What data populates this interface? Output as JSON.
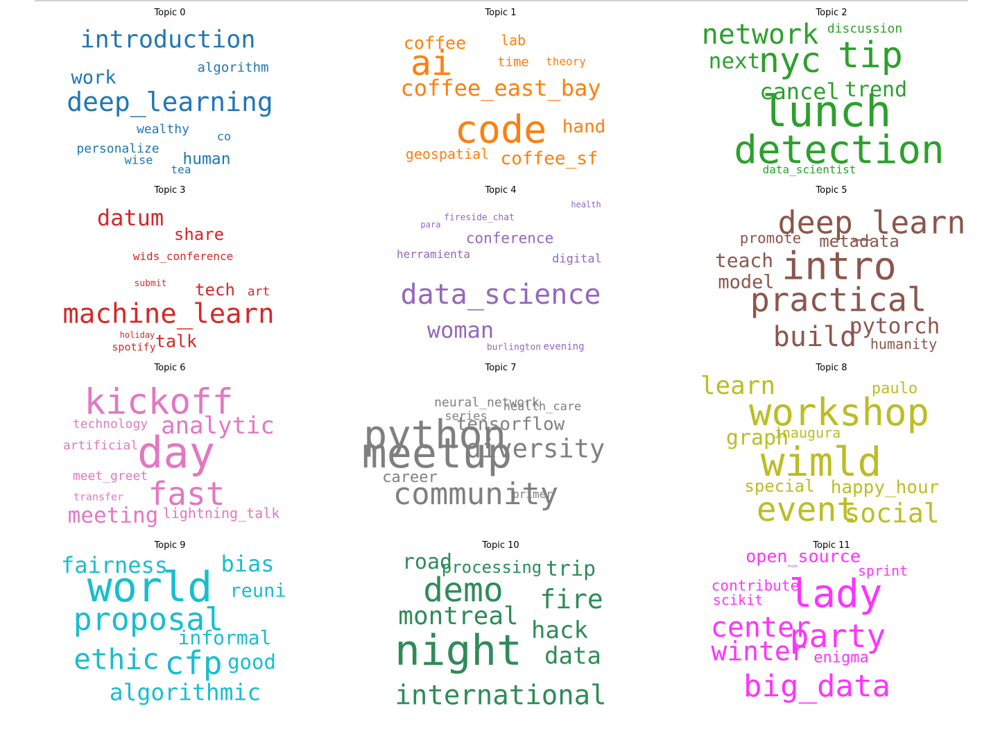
{
  "chart_data": [
    {
      "type": "wordcloud",
      "title": "Topic 0",
      "color": "#1f77b4",
      "words": [
        {
          "text": "introduction",
          "weight": 35
        },
        {
          "text": "deep_learning",
          "weight": 38
        },
        {
          "text": "work",
          "weight": 27
        },
        {
          "text": "algorithm",
          "weight": 19
        },
        {
          "text": "wealthy",
          "weight": 18
        },
        {
          "text": "co",
          "weight": 17
        },
        {
          "text": "personalize",
          "weight": 18
        },
        {
          "text": "wise",
          "weight": 17
        },
        {
          "text": "human",
          "weight": 23
        },
        {
          "text": "tea",
          "weight": 16
        }
      ]
    },
    {
      "type": "wordcloud",
      "title": "Topic 1",
      "color": "#ff7f0e",
      "words": [
        {
          "text": "coffee",
          "weight": 25
        },
        {
          "text": "lab",
          "weight": 20
        },
        {
          "text": "ai",
          "weight": 50
        },
        {
          "text": "time",
          "weight": 19
        },
        {
          "text": "theory",
          "weight": 16
        },
        {
          "text": "coffee_east_bay",
          "weight": 32
        },
        {
          "text": "code",
          "weight": 55
        },
        {
          "text": "hand",
          "weight": 26
        },
        {
          "text": "geospatial",
          "weight": 20
        },
        {
          "text": "coffee_sf",
          "weight": 26
        }
      ]
    },
    {
      "type": "wordcloud",
      "title": "Topic 2",
      "color": "#2ca02c",
      "words": [
        {
          "text": "network",
          "weight": 40
        },
        {
          "text": "discussion",
          "weight": 18
        },
        {
          "text": "next",
          "weight": 31
        },
        {
          "text": "nyc",
          "weight": 50
        },
        {
          "text": "tip",
          "weight": 52
        },
        {
          "text": "cancel",
          "weight": 32
        },
        {
          "text": "trend",
          "weight": 30
        },
        {
          "text": "lunch",
          "weight": 62
        },
        {
          "text": "detection",
          "weight": 56
        },
        {
          "text": "data_scientist",
          "weight": 16
        }
      ]
    },
    {
      "type": "wordcloud",
      "title": "Topic 3",
      "color": "#d62728",
      "words": [
        {
          "text": "datum",
          "weight": 32
        },
        {
          "text": "share",
          "weight": 24
        },
        {
          "text": "wids_conference",
          "weight": 16
        },
        {
          "text": "submit",
          "weight": 13
        },
        {
          "text": "tech",
          "weight": 24
        },
        {
          "text": "art",
          "weight": 18
        },
        {
          "text": "machine_learn",
          "weight": 39
        },
        {
          "text": "holiday",
          "weight": 12
        },
        {
          "text": "talk",
          "weight": 25
        },
        {
          "text": "spotify",
          "weight": 15
        }
      ]
    },
    {
      "type": "wordcloud",
      "title": "Topic 4",
      "color": "#9467bd",
      "words": [
        {
          "text": "health",
          "weight": 12
        },
        {
          "text": "fireside_chat",
          "weight": 13
        },
        {
          "text": "para",
          "weight": 12
        },
        {
          "text": "conference",
          "weight": 21
        },
        {
          "text": "herramienta",
          "weight": 16
        },
        {
          "text": "digital",
          "weight": 17
        },
        {
          "text": "data_science",
          "weight": 40
        },
        {
          "text": "woman",
          "weight": 32
        },
        {
          "text": "burlington",
          "weight": 13
        },
        {
          "text": "evening",
          "weight": 14
        }
      ]
    },
    {
      "type": "wordcloud",
      "title": "Topic 5",
      "color": "#8c564b",
      "words": [
        {
          "text": "deep_learn",
          "weight": 45
        },
        {
          "text": "promote",
          "weight": 21
        },
        {
          "text": "metadata",
          "weight": 24
        },
        {
          "text": "teach",
          "weight": 28
        },
        {
          "text": "intro",
          "weight": 55
        },
        {
          "text": "model",
          "weight": 27
        },
        {
          "text": "practical",
          "weight": 47
        },
        {
          "text": "pytorch",
          "weight": 31
        },
        {
          "text": "build",
          "weight": 40
        },
        {
          "text": "humanity",
          "weight": 20
        }
      ]
    },
    {
      "type": "wordcloud",
      "title": "Topic 6",
      "color": "#e377c2",
      "words": [
        {
          "text": "kickoff",
          "weight": 51
        },
        {
          "text": "technology",
          "weight": 18
        },
        {
          "text": "analytic",
          "weight": 34
        },
        {
          "text": "artificial",
          "weight": 18
        },
        {
          "text": "day",
          "weight": 62
        },
        {
          "text": "meet_greet",
          "weight": 18
        },
        {
          "text": "transfer",
          "weight": 15
        },
        {
          "text": "fast",
          "weight": 46
        },
        {
          "text": "meeting",
          "weight": 31
        },
        {
          "text": "lightning_talk",
          "weight": 20
        }
      ]
    },
    {
      "type": "wordcloud",
      "title": "Topic 7",
      "color": "#7f7f7f",
      "words": [
        {
          "text": "neural_network",
          "weight": 18
        },
        {
          "text": "health_care",
          "weight": 17
        },
        {
          "text": "series",
          "weight": 17
        },
        {
          "text": "python",
          "weight": 57
        },
        {
          "text": "tensorflow",
          "weight": 26
        },
        {
          "text": "meetup",
          "weight": 60
        },
        {
          "text": "diversity",
          "weight": 37
        },
        {
          "text": "career",
          "weight": 22
        },
        {
          "text": "primer",
          "weight": 16
        },
        {
          "text": "community",
          "weight": 44
        }
      ]
    },
    {
      "type": "wordcloud",
      "title": "Topic 8",
      "color": "#bcbd22",
      "words": [
        {
          "text": "learn",
          "weight": 36
        },
        {
          "text": "paulo",
          "weight": 22
        },
        {
          "text": "workshop",
          "weight": 54
        },
        {
          "text": "graph",
          "weight": 30
        },
        {
          "text": "inaugura",
          "weight": 20
        },
        {
          "text": "wimld",
          "weight": 58
        },
        {
          "text": "special",
          "weight": 24
        },
        {
          "text": "happy_hour",
          "weight": 26
        },
        {
          "text": "event",
          "weight": 48
        },
        {
          "text": "social",
          "weight": 38
        }
      ]
    },
    {
      "type": "wordcloud",
      "title": "Topic 9",
      "color": "#17becf",
      "words": [
        {
          "text": "fairness",
          "weight": 32
        },
        {
          "text": "bias",
          "weight": 32
        },
        {
          "text": "world",
          "weight": 60
        },
        {
          "text": "reuni",
          "weight": 27
        },
        {
          "text": "proposal",
          "weight": 45
        },
        {
          "text": "informal",
          "weight": 28
        },
        {
          "text": "ethic",
          "weight": 41
        },
        {
          "text": "cfp",
          "weight": 46
        },
        {
          "text": "good",
          "weight": 29
        },
        {
          "text": "algorithmic",
          "weight": 33
        }
      ]
    },
    {
      "type": "wordcloud",
      "title": "Topic 10",
      "color": "#2e8b57",
      "words": [
        {
          "text": "road",
          "weight": 30
        },
        {
          "text": "processing",
          "weight": 24
        },
        {
          "text": "trip",
          "weight": 30
        },
        {
          "text": "demo",
          "weight": 48
        },
        {
          "text": "fire",
          "weight": 38
        },
        {
          "text": "montreal",
          "weight": 36
        },
        {
          "text": "hack",
          "weight": 34
        },
        {
          "text": "night",
          "weight": 61
        },
        {
          "text": "data",
          "weight": 34
        },
        {
          "text": "international",
          "weight": 39
        }
      ]
    },
    {
      "type": "wordcloud",
      "title": "Topic 11",
      "color": "#ff33ff",
      "words": [
        {
          "text": "open_source",
          "weight": 25
        },
        {
          "text": "sprint",
          "weight": 20
        },
        {
          "text": "contribute",
          "weight": 21
        },
        {
          "text": "lady",
          "weight": 56
        },
        {
          "text": "scikit",
          "weight": 20
        },
        {
          "text": "center",
          "weight": 40
        },
        {
          "text": "party",
          "weight": 46
        },
        {
          "text": "winter",
          "weight": 38
        },
        {
          "text": "enigma",
          "weight": 22
        },
        {
          "text": "big_data",
          "weight": 44
        }
      ]
    }
  ]
}
